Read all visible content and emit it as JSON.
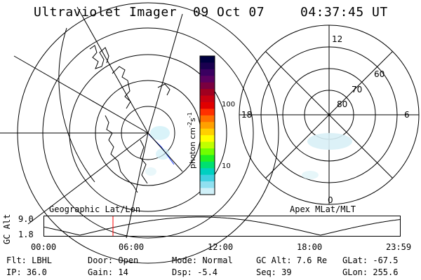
{
  "header": {
    "instrument": "Ultraviolet Imager",
    "date": "09 Oct 07",
    "time": "04:37:45 UT"
  },
  "colorbar": {
    "unit": "photon cm^-2 s^-1",
    "unit_parts": {
      "base1": "photon cm",
      "exp1": "-2",
      "base2": "s",
      "exp2": "-1"
    },
    "ticks": [
      "100",
      "10"
    ],
    "colors": [
      "#000040",
      "#1a0050",
      "#3a0060",
      "#5a0060",
      "#7a0040",
      "#a00020",
      "#c80010",
      "#e00000",
      "#ff3000",
      "#ff7000",
      "#ffa000",
      "#ffd000",
      "#ffff00",
      "#c0ff00",
      "#70ff00",
      "#20f020",
      "#00e070",
      "#00d0c0",
      "#40d0e0",
      "#90e0f0",
      "#d0f0f8"
    ]
  },
  "left_map": {
    "label": "Geographic Lat/Lon"
  },
  "right_map": {
    "label": "Apex MLat/MLT",
    "mlt_labels": {
      "top": "12",
      "left": "18",
      "right": "6",
      "bottom": "0"
    },
    "lat_labels": [
      "60",
      "70",
      "80"
    ]
  },
  "altitude_plot": {
    "ylabel": "GC Alt",
    "yticks": [
      "9.0",
      "1.8"
    ],
    "xticks": [
      "00:00",
      "06:00",
      "12:00",
      "18:00",
      "23:59"
    ],
    "marker_time_hours": 4.63,
    "curve_color": "#000000",
    "marker_color": "#ff0000"
  },
  "info": {
    "filter": "Flt: LBHL",
    "door": "Door: Open",
    "mode": "Mode: Normal",
    "gc_alt": "GC Alt: 7.6 Re",
    "glat": "GLat: -67.5",
    "ip": "IP: 36.0",
    "gain": "Gain: 14",
    "dsp": "Dsp:   -5.4",
    "seq": "Seq: 39",
    "glon": "GLon: 255.6"
  }
}
